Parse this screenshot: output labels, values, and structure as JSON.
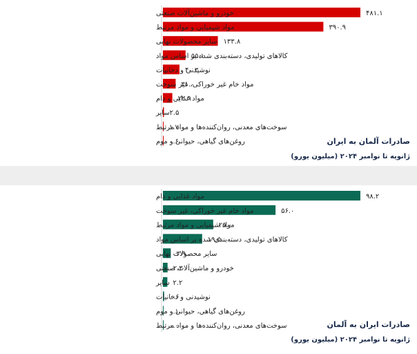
{
  "colors": {
    "exports": "#d50000",
    "imports": "#0b6b55"
  },
  "chart_data": [
    {
      "type": "bar",
      "orientation": "horizontal",
      "title": "صادرات آلمان به ایران",
      "subtitle": "ژانویه تا نوامبر ۲۰۲۴ (میلیون یورو)",
      "categories": [
        "خودرو و ماشین‌آلات صنعتی",
        "مواد شیمیایی و مواد مرتبط",
        "سایر محصولات نهایی",
        "کالاهای تولیدی، دسته‌بندی شده بر اساس مواد",
        "نوشیدنی و دخانیات",
        "مواد خام غیر خوراکی، غیر سوخت",
        "مواد غذایی و دام",
        "سایر",
        "سوخت‌های معدنی، روان‌کننده‌ها و مواد مرتبط",
        "روغن‌های گیاهی، حیوانی و موم"
      ],
      "values": [
        481.1,
        390.9,
        133.8,
        55.1,
        40.3,
        31.0,
        22.9,
        2.5,
        1.7,
        0.6
      ],
      "value_labels": [
        "۴۸۱.۱",
        "۳۹۰.۹",
        "۱۳۳.۸",
        "۵۵.۱",
        "۴۰.۳",
        "۳۱.۰",
        "۲۲.۹",
        "۲.۵",
        "۱.۷",
        "۰.۶"
      ],
      "xlim": [
        0,
        481.1
      ],
      "grid": false,
      "legend": "none"
    },
    {
      "type": "bar",
      "orientation": "horizontal",
      "title": "صادرات ایران به آلمان",
      "subtitle": "ژانویه تا نوامبر ۲۰۲۴ (میلیون یورو)",
      "categories": [
        "مواد غذایی و دام",
        "مواد خام غیر خوراکی، غیر سوخت",
        "مواد شیمیایی و مواد مرتبط",
        "کالاهای تولیدی، دسته‌بندی شده بر اساس مواد",
        "سایر محصولات نهایی",
        "خودرو و ماشین‌آلات صنعتی",
        "سایر",
        "نوشیدنی و دخانیات",
        "روغن‌های گیاهی، حیوانی و موم",
        "سوخت‌های معدنی، روان‌کننده‌ها و مواد مرتبط"
      ],
      "values": [
        98.2,
        56.0,
        25.0,
        19.5,
        3.9,
        2.3,
        2.2,
        0.6,
        0.1,
        0.0
      ],
      "value_labels": [
        "۹۸.۲",
        "۵۶.۰",
        "۲۵.۰",
        "۱۹.۵",
        "۳.۹",
        "۲.۳",
        "۲.۲",
        "۰.۶",
        "۰.۱",
        "۰.۰"
      ],
      "xlim": [
        0,
        98.2
      ],
      "grid": false,
      "legend": "none"
    }
  ]
}
